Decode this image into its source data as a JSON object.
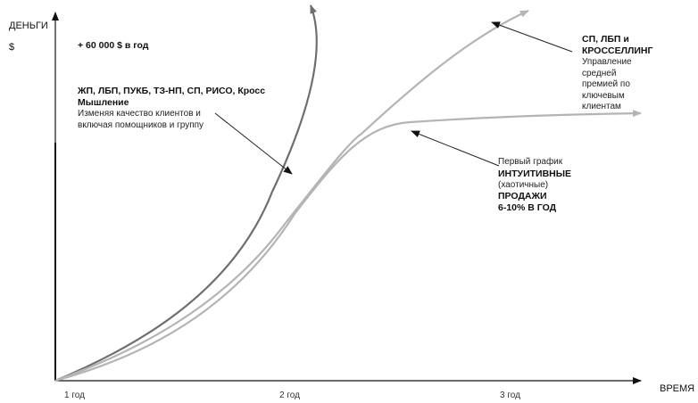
{
  "axes": {
    "y_title": "ДЕНЬГИ",
    "y_unit": "$",
    "x_title": "ВРЕМЯ",
    "x_ticks": [
      "1 год",
      "2 год",
      "3 год"
    ]
  },
  "annotations": {
    "income": "+ 60 000 $ в год",
    "steep": {
      "bold_line1": "ЖП, ЛБП, ПУКБ, ТЗ-НП, СП, РИСО, Кросс",
      "bold_line2": "Мышление",
      "line3": "Изменяя качество клиентов и",
      "line4": "включая помощников и группу"
    },
    "cross": {
      "bold_line1": "СП, ЛБП и",
      "bold_line2": "КРОССЕЛЛИНГ",
      "line3": "Управление",
      "line4": "средней",
      "line5": "премией по",
      "line6": "ключевым",
      "line7": "клиентам"
    },
    "intuitive": {
      "line1": "Первый график",
      "bold_line2": "ИНТУИТИВНЫЕ",
      "line3": "(хаотичные)",
      "bold_line4": "ПРОДАЖИ",
      "bold_line5": "6-10% В ГОД"
    }
  },
  "colors": {
    "axis": "#111111",
    "steep_curve": "#6e6e6e",
    "light_curve": "#b4b4b4",
    "pointer": "#222222"
  }
}
